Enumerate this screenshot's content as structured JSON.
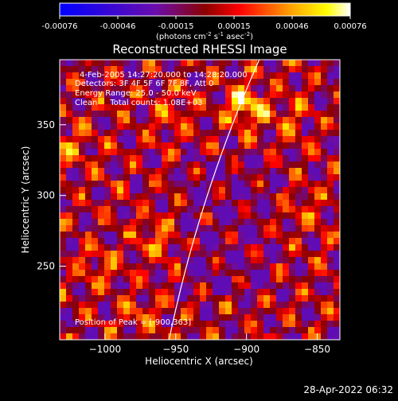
{
  "colorbar": {
    "ticks": [
      "-0.00076",
      "-0.00046",
      "-0.00015",
      "0.00015",
      "0.00046",
      "0.00076"
    ],
    "unit_pre": "(photons cm",
    "unit_exp1": "-2",
    "unit_mid": " s",
    "unit_exp2": "-1",
    "unit_mid2": " asec",
    "unit_exp3": "-2",
    "unit_post": ")"
  },
  "info": {
    "time": "4-Feb-2005 14:27:20.000 to 14:28:20.000",
    "detectors": "Detectors: 3F 4F 5F 6F 7F 8F, Att 0",
    "energy": "Energy Range: 25.0 - 50.0 keV",
    "clean": "Clean     Total counts: 1.08E+03",
    "peak": "Position of Peak = [-900,363]"
  },
  "footer": {
    "timestamp": "28-Apr-2022 06:32"
  },
  "chart_data": {
    "type": "heatmap",
    "title": "Reconstructed RHESSI Image",
    "xlabel": "Heliocentric X (arcsec)",
    "ylabel": "Heliocentric Y (arcsec)",
    "xlim": [
      -1032,
      -834
    ],
    "ylim": [
      198,
      396
    ],
    "xticks": [
      -1000,
      -950,
      -900,
      -850
    ],
    "xtick_labels": [
      "−1000",
      "−950",
      "−900",
      "−850"
    ],
    "yticks": [
      250,
      300,
      350
    ],
    "ytick_labels": [
      "250",
      "300",
      "350"
    ],
    "value_range": [
      -0.00076,
      0.00076
    ],
    "peak_position": [
      -900,
      363
    ],
    "colormap": [
      "#0000ff",
      "#6a0dad",
      "#8b0000",
      "#ff0000",
      "#ffa500",
      "#ffff00",
      "#ffffff"
    ],
    "limb_color": "#ffffff"
  }
}
